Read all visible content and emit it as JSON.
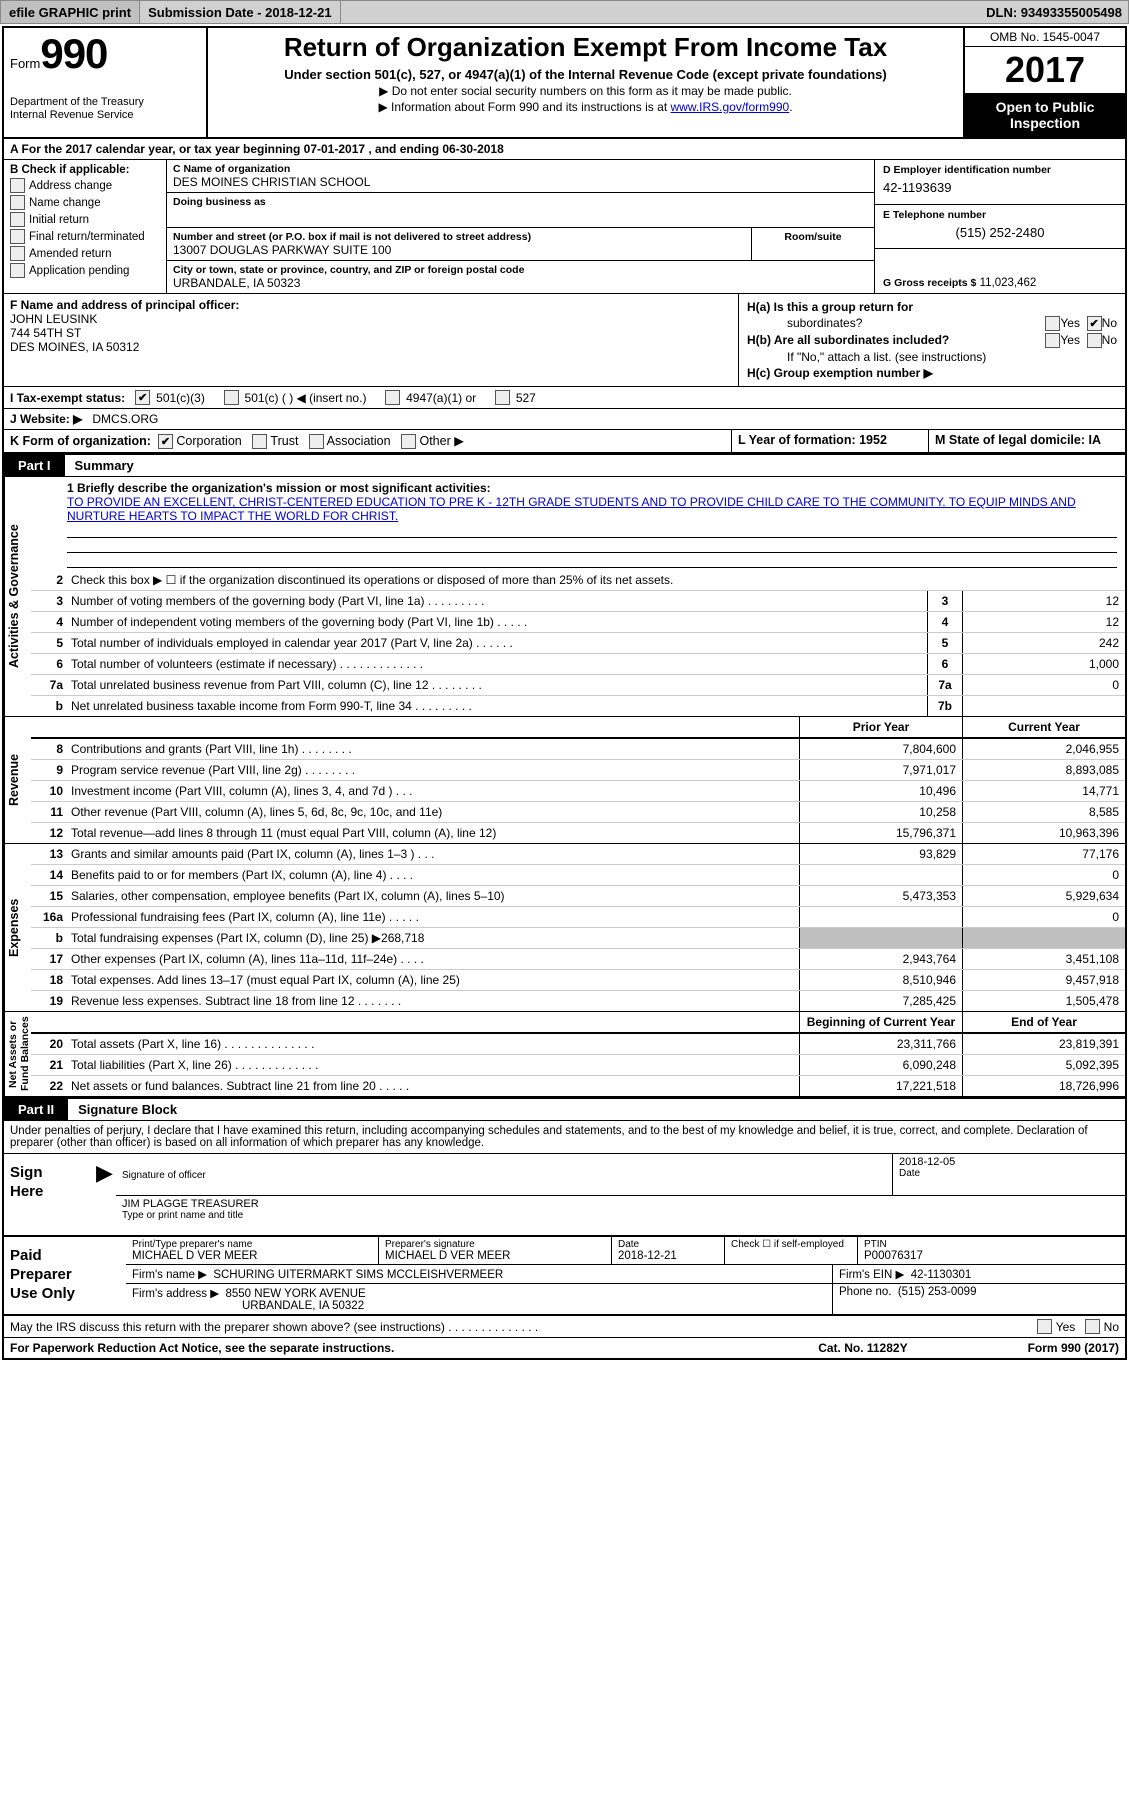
{
  "topbar": {
    "efile_label": "efile GRAPHIC print",
    "submission_label": "Submission Date - 2018-12-21",
    "dln_label": "DLN: 93493355005498"
  },
  "header": {
    "form_word": "Form",
    "form_no": "990",
    "dept1": "Department of the Treasury",
    "dept2": "Internal Revenue Service",
    "title": "Return of Organization Exempt From Income Tax",
    "sub": "Under section 501(c), 527, or 4947(a)(1) of the Internal Revenue Code (except private foundations)",
    "note1": "▶ Do not enter social security numbers on this form as it may be made public.",
    "note2_pre": "▶ Information about Form 990 and its instructions is at ",
    "note2_link": "www.IRS.gov/form990",
    "omb": "OMB No. 1545-0047",
    "year": "2017",
    "open1": "Open to Public",
    "open2": "Inspection"
  },
  "rowA": "A  For the 2017 calendar year, or tax year beginning 07-01-2017   , and ending 06-30-2018",
  "colB": {
    "label": "B Check if applicable:",
    "opts": [
      "Address change",
      "Name change",
      "Initial return",
      "Final return/terminated",
      "Amended return",
      "Application pending"
    ]
  },
  "colC": {
    "name_lbl": "C Name of organization",
    "name_val": "DES MOINES CHRISTIAN SCHOOL",
    "dba_lbl": "Doing business as",
    "dba_val": "",
    "street_lbl": "Number and street (or P.O. box if mail is not delivered to street address)",
    "street_val": "13007 DOUGLAS PARKWAY SUITE 100",
    "room_lbl": "Room/suite",
    "city_lbl": "City or town, state or province, country, and ZIP or foreign postal code",
    "city_val": "URBANDALE, IA  50323"
  },
  "colD": {
    "ein_lbl": "D Employer identification number",
    "ein_val": "42-1193639",
    "tel_lbl": "E Telephone number",
    "tel_val": "(515) 252-2480",
    "gross_lbl": "G Gross receipts $",
    "gross_val": "11,023,462"
  },
  "secF": {
    "lbl": "F Name and address of principal officer:",
    "line1": "JOHN LEUSINK",
    "line2": "744 54TH ST",
    "line3": "DES MOINES, IA  50312"
  },
  "secH": {
    "ha": "H(a)  Is this a group return for",
    "ha2": "subordinates?",
    "hb": "H(b) Are all subordinates included?",
    "hb2": "If \"No,\" attach a list. (see instructions)",
    "hc": "H(c)  Group exemption number ▶",
    "yes": "Yes",
    "no": "No"
  },
  "rowI": {
    "lbl": "I  Tax-exempt status:",
    "o1": "501(c)(3)",
    "o2": "501(c) (   ) ◀ (insert no.)",
    "o3": "4947(a)(1) or",
    "o4": "527"
  },
  "rowJ": {
    "lbl": "J  Website: ▶",
    "val": "DMCS.ORG"
  },
  "rowK": {
    "lbl": "K Form of organization:",
    "o1": "Corporation",
    "o2": "Trust",
    "o3": "Association",
    "o4": "Other ▶"
  },
  "rowLM": {
    "L": "L Year of formation: 1952",
    "M": "M State of legal domicile: IA"
  },
  "part1": {
    "tag": "Part I",
    "title": "Summary"
  },
  "mission": {
    "lbl": "1  Briefly describe the organization's mission or most significant activities:",
    "text": "TO PROVIDE AN EXCELLENT, CHRIST-CENTERED EDUCATION TO PRE K - 12TH GRADE STUDENTS AND TO PROVIDE CHILD CARE TO THE COMMUNITY. TO EQUIP MINDS AND NURTURE HEARTS TO IMPACT THE WORLD FOR CHRIST."
  },
  "govLines": [
    {
      "n": "2",
      "d": "Check this box ▶ ☐  if the organization discontinued its operations or disposed of more than 25% of its net assets.",
      "c": "",
      "v": ""
    },
    {
      "n": "3",
      "d": "Number of voting members of the governing body (Part VI, line 1a)  .    .    .    .    .    .    .    .    .",
      "c": "3",
      "v": "12"
    },
    {
      "n": "4",
      "d": "Number of independent voting members of the governing body (Part VI, line 1b)   .    .    .    .    .",
      "c": "4",
      "v": "12"
    },
    {
      "n": "5",
      "d": "Total number of individuals employed in calendar year 2017 (Part V, line 2a)   .    .    .    .    .    .",
      "c": "5",
      "v": "242"
    },
    {
      "n": "6",
      "d": "Total number of volunteers (estimate if necessary)   .    .    .    .    .    .    .    .    .    .    .    .    .",
      "c": "6",
      "v": "1,000"
    },
    {
      "n": "7a",
      "d": "Total unrelated business revenue from Part VIII, column (C), line 12   .    .    .    .    .    .    .    .",
      "c": "7a",
      "v": "0"
    },
    {
      "n": "b",
      "d": "Net unrelated business taxable income from Form 990-T, line 34   .    .    .    .    .    .    .    .    .",
      "c": "7b",
      "v": ""
    }
  ],
  "hdrCols": {
    "prior": "Prior Year",
    "current": "Current Year"
  },
  "revLines": [
    {
      "n": "8",
      "d": "Contributions and grants (Part VIII, line 1h)   .    .    .    .    .    .    .    .",
      "p": "7,804,600",
      "c": "2,046,955"
    },
    {
      "n": "9",
      "d": "Program service revenue (Part VIII, line 2g)   .    .    .    .    .    .    .    .",
      "p": "7,971,017",
      "c": "8,893,085"
    },
    {
      "n": "10",
      "d": "Investment income (Part VIII, column (A), lines 3, 4, and 7d )   .    .    .",
      "p": "10,496",
      "c": "14,771"
    },
    {
      "n": "11",
      "d": "Other revenue (Part VIII, column (A), lines 5, 6d, 8c, 9c, 10c, and 11e)",
      "p": "10,258",
      "c": "8,585"
    },
    {
      "n": "12",
      "d": "Total revenue—add lines 8 through 11 (must equal Part VIII, column (A), line 12)",
      "p": "15,796,371",
      "c": "10,963,396"
    }
  ],
  "expLines": [
    {
      "n": "13",
      "d": "Grants and similar amounts paid (Part IX, column (A), lines 1–3 )   .    .    .",
      "p": "93,829",
      "c": "77,176"
    },
    {
      "n": "14",
      "d": "Benefits paid to or for members (Part IX, column (A), line 4)   .    .    .    .",
      "p": "",
      "c": "0"
    },
    {
      "n": "15",
      "d": "Salaries, other compensation, employee benefits (Part IX, column (A), lines 5–10)",
      "p": "5,473,353",
      "c": "5,929,634"
    },
    {
      "n": "16a",
      "d": "Professional fundraising fees (Part IX, column (A), line 11e)   .    .    .    .    .",
      "p": "",
      "c": "0"
    },
    {
      "n": "b",
      "d": "Total fundraising expenses (Part IX, column (D), line 25) ▶268,718",
      "p": "SHADE",
      "c": "SHADE"
    },
    {
      "n": "17",
      "d": "Other expenses (Part IX, column (A), lines 11a–11d, 11f–24e)   .    .    .    .",
      "p": "2,943,764",
      "c": "3,451,108"
    },
    {
      "n": "18",
      "d": "Total expenses. Add lines 13–17 (must equal Part IX, column (A), line 25)",
      "p": "8,510,946",
      "c": "9,457,918"
    },
    {
      "n": "19",
      "d": "Revenue less expenses. Subtract line 18 from line 12 .    .    .    .    .    .    .",
      "p": "7,285,425",
      "c": "1,505,478"
    }
  ],
  "naHdr": {
    "beg": "Beginning of Current Year",
    "end": "End of Year"
  },
  "naLines": [
    {
      "n": "20",
      "d": "Total assets (Part X, line 16)  .    .    .    .    .    .    .    .    .    .    .    .    .    .",
      "p": "23,311,766",
      "c": "23,819,391"
    },
    {
      "n": "21",
      "d": "Total liabilities (Part X, line 26)  .    .    .    .    .    .    .    .    .    .    .    .    .",
      "p": "6,090,248",
      "c": "5,092,395"
    },
    {
      "n": "22",
      "d": "Net assets or fund balances. Subtract line 21 from line 20  .    .    .    .    .",
      "p": "17,221,518",
      "c": "18,726,996"
    }
  ],
  "part2": {
    "tag": "Part II",
    "title": "Signature Block"
  },
  "sigIntro": "Under penalties of perjury, I declare that I have examined this return, including accompanying schedules and statements, and to the best of my knowledge and belief, it is true, correct, and complete. Declaration of preparer (other than officer) is based on all information of which preparer has any knowledge.",
  "signHere": {
    "label": "Sign\nHere",
    "sig_lbl": "Signature of officer",
    "date_lbl": "Date",
    "date_val": "2018-12-05",
    "name_val": "JIM PLAGGE  TREASURER",
    "name_lbl": "Type or print name and title"
  },
  "paid": {
    "label": "Paid\nPreparer\nUse Only",
    "r1": {
      "c1_lbl": "Print/Type preparer's name",
      "c1_val": "MICHAEL D VER MEER",
      "c2_lbl": "Preparer's signature",
      "c2_val": "MICHAEL D VER MEER",
      "c3_lbl": "Date",
      "c3_val": "2018-12-21",
      "c4_lbl": "Check ☐ if self-employed",
      "c5_lbl": "PTIN",
      "c5_val": "P00076317"
    },
    "r2": {
      "lbl": "Firm's name      ▶",
      "val": "SCHURING UITERMARKT SIMS MCCLEISHVERMEER",
      "ein_lbl": "Firm's EIN ▶",
      "ein_val": "42-1130301"
    },
    "r3": {
      "lbl": "Firm's address ▶",
      "val1": "8550 NEW YORK AVENUE",
      "val2": "URBANDALE, IA  50322",
      "ph_lbl": "Phone no.",
      "ph_val": "(515) 253-0099"
    }
  },
  "discuss": {
    "q": "May the IRS discuss this return with the preparer shown above? (see instructions)   .    .    .    .    .    .    .    .    .    .    .    .    .    .",
    "yes": "Yes",
    "no": "No"
  },
  "footer": {
    "left": "For Paperwork Reduction Act Notice, see the separate instructions.",
    "mid": "Cat. No. 11282Y",
    "right": "Form 990 (2017)"
  },
  "sideLabels": {
    "gov": "Activities & Governance",
    "rev": "Revenue",
    "exp": "Expenses",
    "na": "Net Assets or\nFund Balances"
  }
}
